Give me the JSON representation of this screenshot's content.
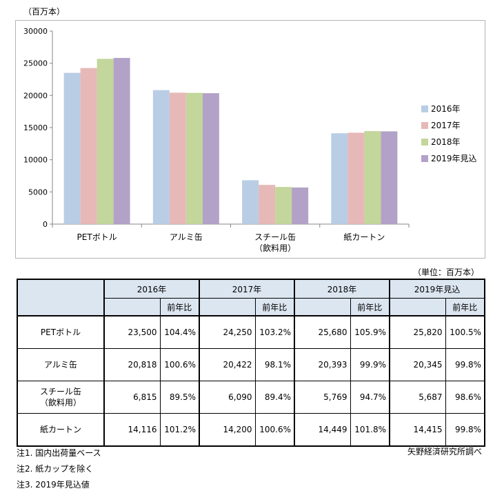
{
  "chart_unit": "（百万本）",
  "table_unit": "（単位：百万本）",
  "chart_data": {
    "type": "bar",
    "categories": [
      "PETボトル",
      "アルミ缶",
      "スチール缶|（飲料用）",
      "紙カートン"
    ],
    "series": [
      {
        "name": "2016年",
        "color": "#b9cde5",
        "values": [
          23500,
          20818,
          6815,
          14116
        ]
      },
      {
        "name": "2017年",
        "color": "#e6b9b8",
        "values": [
          24250,
          20422,
          6090,
          14200
        ]
      },
      {
        "name": "2018年",
        "color": "#c3d69b",
        "values": [
          25680,
          20393,
          5769,
          14449
        ]
      },
      {
        "name": "2019年見込",
        "color": "#b3a2c7",
        "values": [
          25820,
          20345,
          5687,
          14415
        ]
      }
    ],
    "ylim": [
      0,
      30000
    ],
    "yticks": [
      0,
      5000,
      10000,
      15000,
      20000,
      25000,
      30000
    ],
    "legend": "right",
    "grid": false
  },
  "table": {
    "years": [
      "2016年",
      "2017年",
      "2018年",
      "2019年見込"
    ],
    "yoy_label": "前年比",
    "rows": [
      {
        "label": [
          "PETボトル"
        ],
        "cells": [
          [
            "23,500",
            "104.4%"
          ],
          [
            "24,250",
            "103.2%"
          ],
          [
            "25,680",
            "105.9%"
          ],
          [
            "25,820",
            "100.5%"
          ]
        ]
      },
      {
        "label": [
          "アルミ缶"
        ],
        "cells": [
          [
            "20,818",
            "100.6%"
          ],
          [
            "20,422",
            "98.1%"
          ],
          [
            "20,393",
            "99.9%"
          ],
          [
            "20,345",
            "99.8%"
          ]
        ]
      },
      {
        "label": [
          "スチール缶",
          "（飲料用）"
        ],
        "cells": [
          [
            "6,815",
            "89.5%"
          ],
          [
            "6,090",
            "89.4%"
          ],
          [
            "5,769",
            "94.7%"
          ],
          [
            "5,687",
            "98.6%"
          ]
        ]
      },
      {
        "label": [
          "紙カートン"
        ],
        "cells": [
          [
            "14,116",
            "101.2%"
          ],
          [
            "14,200",
            "100.6%"
          ],
          [
            "14,449",
            "101.8%"
          ],
          [
            "14,415",
            "99.8%"
          ]
        ]
      }
    ]
  },
  "notes": [
    "注1. 国内出荷量ベース",
    "注2. 紙カップを除く",
    "注3. 2019年見込値"
  ],
  "source": "矢野経済研究所調べ"
}
